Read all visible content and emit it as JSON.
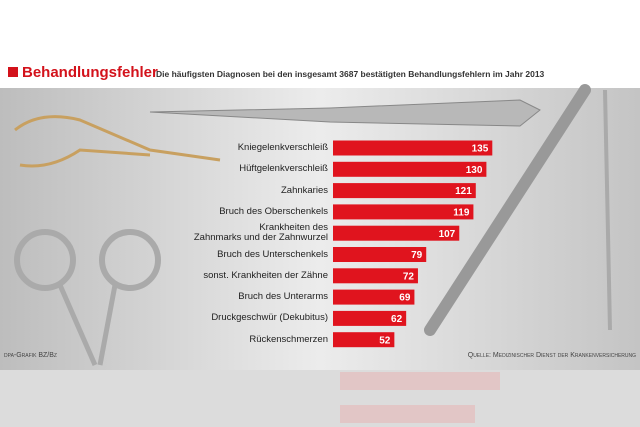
{
  "chart_data": {
    "type": "hbar",
    "title": "Behandlungsfehler",
    "subtitle": "Die häufigsten Diagnosen bei den insgesamt 3687 bestätigten Behandlungsfehlern im Jahr 2013",
    "categories": [
      "Kniegelenkverschleiß",
      "Hüftgelenkverschleiß",
      "Zahnkaries",
      "Bruch des Oberschenkels",
      "Krankheiten des\nZahnmarks und der Zahnwurzel",
      "Bruch des Unterschenkels",
      "sonst. Krankheiten der Zähne",
      "Bruch des Unterarms",
      "Druckgeschwür (Dekubitus)",
      "Rückenschmerzen"
    ],
    "values": [
      135,
      130,
      121,
      119,
      107,
      79,
      72,
      69,
      62,
      52
    ],
    "color": "#e0141e",
    "credit": "dpa-Grafik BZ/Bz",
    "source": "Quelle: Medizinischer Dienst der Krankenversicherung"
  }
}
